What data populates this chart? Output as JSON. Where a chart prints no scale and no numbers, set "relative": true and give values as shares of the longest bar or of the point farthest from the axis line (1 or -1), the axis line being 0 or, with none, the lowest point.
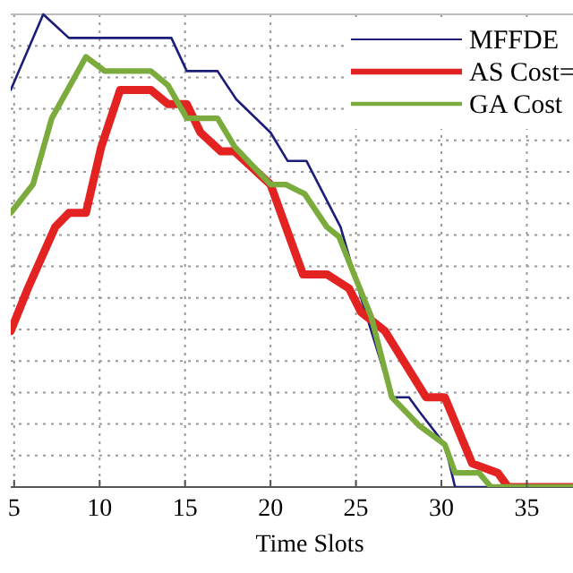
{
  "chart_data": {
    "type": "line",
    "relative": true,
    "xlabel": "Time Slots",
    "xlim": [
      4.8,
      37.7
    ],
    "xticks": [
      5,
      10,
      15,
      20,
      25,
      30,
      35
    ],
    "grid": true,
    "legend": "top right",
    "series": [
      {
        "name": "MFFDE",
        "color": "#1c1c7a",
        "x": [
          4.8,
          6.7,
          7.3,
          8.2,
          14.2,
          15.1,
          16.9,
          18.0,
          20.0,
          21.0,
          22.1,
          24.1,
          25.3,
          27.1,
          28.1,
          28.7,
          30.2,
          30.8,
          37.7
        ],
        "values": [
          0.84,
          1,
          0.98,
          0.95,
          0.95,
          0.88,
          0.88,
          0.82,
          0.75,
          0.69,
          0.69,
          0.55,
          0.4,
          0.19,
          0.19,
          0.16,
          0.09,
          0,
          0
        ]
      },
      {
        "name": "AS Cost=",
        "color": "#e32222",
        "x": [
          4.8,
          5.8,
          7.4,
          8.2,
          9.2,
          10.1,
          11.2,
          13.0,
          14.0,
          15.1,
          15.9,
          17.1,
          17.9,
          20.0,
          21.9,
          23.3,
          24.6,
          25.3,
          26.7,
          29.1,
          30.2,
          31.8,
          33.3,
          33.9,
          37.7
        ],
        "values": [
          0.33,
          0.42,
          0.55,
          0.58,
          0.58,
          0.72,
          0.84,
          0.84,
          0.81,
          0.81,
          0.75,
          0.71,
          0.71,
          0.64,
          0.45,
          0.45,
          0.42,
          0.37,
          0.33,
          0.19,
          0.19,
          0.05,
          0.03,
          0,
          0
        ]
      },
      {
        "name": "GA Cost",
        "color": "#7aab3c",
        "x": [
          4.8,
          6.1,
          7.2,
          9.2,
          10.3,
          13.0,
          14.0,
          15.1,
          16.9,
          17.9,
          20.0,
          20.9,
          22.0,
          23.3,
          24.0,
          25.0,
          25.9,
          27.1,
          28.7,
          30.2,
          30.8,
          32.2,
          32.9,
          37.7
        ],
        "values": [
          0.58,
          0.64,
          0.78,
          0.91,
          0.88,
          0.88,
          0.85,
          0.78,
          0.78,
          0.72,
          0.64,
          0.64,
          0.62,
          0.55,
          0.53,
          0.44,
          0.36,
          0.19,
          0.13,
          0.09,
          0.03,
          0.03,
          0,
          0
        ]
      }
    ]
  }
}
